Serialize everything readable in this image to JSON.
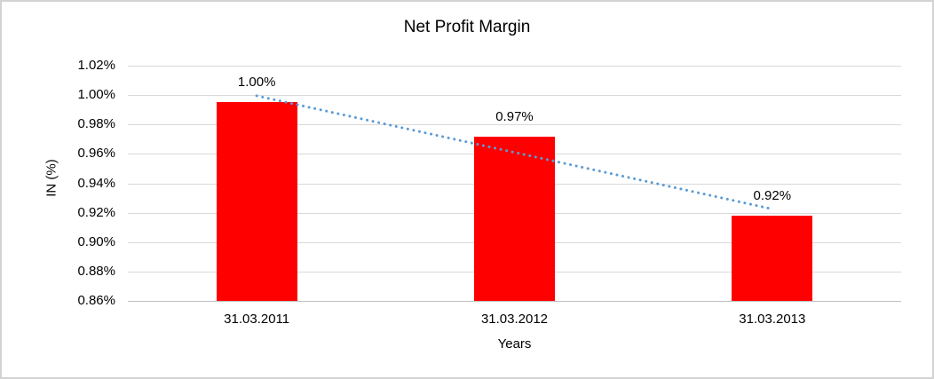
{
  "chart_data": {
    "type": "bar",
    "title": "Net Profit Margin",
    "xlabel": "Years",
    "ylabel": "IN (%)",
    "categories": [
      "31.03.2011",
      "31.03.2012",
      "31.03.2013"
    ],
    "values": [
      0.995,
      0.972,
      0.918
    ],
    "data_labels": [
      "1.00%",
      "0.97%",
      "0.92%"
    ],
    "yticks": [
      "1.02%",
      "1.00%",
      "0.98%",
      "0.96%",
      "0.94%",
      "0.92%",
      "0.90%",
      "0.88%",
      "0.86%"
    ],
    "ylim": [
      0.86,
      1.02
    ],
    "ytick_step": 0.02,
    "grid": true,
    "legend": "none",
    "bar_color": "#ff0000",
    "gridline_color": "#d9d9d9",
    "axis_line_color": "#bfbfbf",
    "trendline": {
      "style": "dotted",
      "color": "#5b9bd5",
      "start_value": 0.9995,
      "end_value": 0.9225
    }
  }
}
